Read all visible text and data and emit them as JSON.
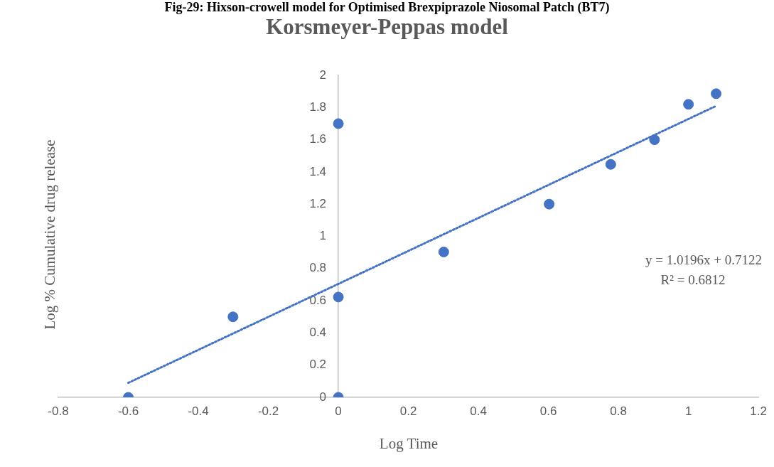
{
  "chart_data": {
    "type": "scatter",
    "title": "Korsmeyer-Peppas model",
    "xlabel": "Log Time",
    "ylabel": "Log % Cumulative drug release",
    "annotations": [
      "Fig-29: Hixson-crowell model for Optimised Brexpiprazole Niosomal Patch (BT7)",
      "y = 1.0196x + 0.7122",
      "R² = 0.6812"
    ],
    "series": [
      {
        "color": "#4472c4",
        "marker": "circle",
        "x": [
          -0.6,
          -0.301,
          0,
          0,
          0,
          0.301,
          0.602,
          0.778,
          0.903,
          1,
          1.079
        ],
        "values": [
          0,
          0.5,
          0,
          0.623,
          1.7,
          0.903,
          1.2,
          1.447,
          1.6,
          1.82,
          1.886
        ]
      },
      {
        "type": "line",
        "color": "#4472c4",
        "line_style": "dotted",
        "marker": "none",
        "x": [
          -0.6,
          1.079
        ],
        "values": [
          0.09,
          1.81
        ]
      }
    ],
    "xlim": [
      -0.8,
      1.2
    ],
    "xticks": [
      -0.8,
      -0.6,
      -0.4,
      -0.2,
      0,
      0.2,
      0.4,
      0.6,
      0.8,
      1,
      1.2
    ],
    "ylim": [
      0,
      2
    ],
    "yticks": [
      0,
      0.2,
      0.4,
      0.6,
      0.8,
      1,
      1.2,
      1.4,
      1.6,
      1.8,
      2
    ],
    "grid": false,
    "legend": false
  }
}
